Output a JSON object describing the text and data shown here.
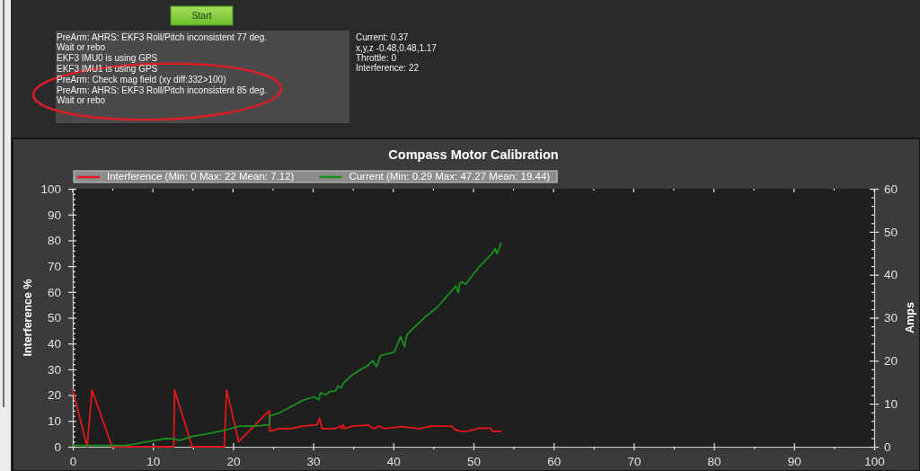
{
  "chart_data": {
    "type": "line",
    "title": "Compass Motor Calibration",
    "ylabel": "Interference %",
    "y2label": "Amps",
    "annotations": [
      "Start",
      "PreArm: AHRS: EKF3 Roll/Pitch inconsistent 77 deg.",
      "Wait or rebo",
      "EKF3 IMU0 is using GPS",
      "EKF3 IMU1 is using GPS",
      "PreArm: Check mag field (xy diff:332>100)",
      "PreArm: AHRS: EKF3 Roll/Pitch inconsistent 85 deg.",
      "Wait or rebo",
      "Current:  0.37",
      "x,y,z  -0.48,0.48,1.17",
      "Throttle:  0",
      "Interference: 22"
    ],
    "legend": "top left",
    "xlim": [
      0,
      100
    ],
    "xticks": [
      0,
      {
        "value": 5,
        "label": null
      },
      10,
      {
        "value": 15,
        "label": null
      },
      20,
      {
        "value": 25,
        "label": null
      },
      30,
      {
        "value": 35,
        "label": null
      },
      40,
      {
        "value": 45,
        "label": null
      },
      50,
      {
        "value": 55,
        "label": null
      },
      60,
      {
        "value": 65,
        "label": null
      },
      70,
      {
        "value": 75,
        "label": null
      },
      80,
      {
        "value": 85,
        "label": null
      },
      90,
      {
        "value": 95,
        "label": null
      },
      100
    ],
    "ylim": [
      0,
      100
    ],
    "yticks": [
      0,
      {
        "value": 2,
        "label": null
      },
      {
        "value": 4,
        "label": null
      },
      {
        "value": 6,
        "label": null
      },
      {
        "value": 8,
        "label": null
      },
      10,
      {
        "value": 12,
        "label": null
      },
      {
        "value": 14,
        "label": null
      },
      {
        "value": 16,
        "label": null
      },
      {
        "value": 18,
        "label": null
      },
      20,
      {
        "value": 22,
        "label": null
      },
      {
        "value": 24,
        "label": null
      },
      {
        "value": 26,
        "label": null
      },
      {
        "value": 28,
        "label": null
      },
      30,
      {
        "value": 32,
        "label": null
      },
      {
        "value": 34,
        "label": null
      },
      {
        "value": 36,
        "label": null
      },
      {
        "value": 38,
        "label": null
      },
      40,
      {
        "value": 42,
        "label": null
      },
      {
        "value": 44,
        "label": null
      },
      {
        "value": 46,
        "label": null
      },
      {
        "value": 48,
        "label": null
      },
      50,
      {
        "value": 52,
        "label": null
      },
      {
        "value": 54,
        "label": null
      },
      {
        "value": 56,
        "label": null
      },
      {
        "value": 58,
        "label": null
      },
      60,
      {
        "value": 62,
        "label": null
      },
      {
        "value": 64,
        "label": null
      },
      {
        "value": 66,
        "label": null
      },
      {
        "value": 68,
        "label": null
      },
      70,
      {
        "value": 72,
        "label": null
      },
      {
        "value": 74,
        "label": null
      },
      {
        "value": 76,
        "label": null
      },
      {
        "value": 78,
        "label": null
      },
      80,
      {
        "value": 82,
        "label": null
      },
      {
        "value": 84,
        "label": null
      },
      {
        "value": 86,
        "label": null
      },
      {
        "value": 88,
        "label": null
      },
      90,
      {
        "value": 92,
        "label": null
      },
      {
        "value": 94,
        "label": null
      },
      {
        "value": 96,
        "label": null
      },
      {
        "value": 98,
        "label": null
      },
      100
    ],
    "y2lim": [
      0,
      60
    ],
    "y2ticks": [
      0,
      {
        "value": 2,
        "label": null
      },
      {
        "value": 4,
        "label": null
      },
      {
        "value": 6,
        "label": null
      },
      {
        "value": 8,
        "label": null
      },
      10,
      {
        "value": 12,
        "label": null
      },
      {
        "value": 14,
        "label": null
      },
      {
        "value": 16,
        "label": null
      },
      {
        "value": 18,
        "label": null
      },
      20,
      {
        "value": 22,
        "label": null
      },
      {
        "value": 24,
        "label": null
      },
      {
        "value": 26,
        "label": null
      },
      {
        "value": 28,
        "label": null
      },
      30,
      {
        "value": 32,
        "label": null
      },
      {
        "value": 34,
        "label": null
      },
      {
        "value": 36,
        "label": null
      },
      {
        "value": 38,
        "label": null
      },
      40,
      {
        "value": 42,
        "label": null
      },
      {
        "value": 44,
        "label": null
      },
      {
        "value": 46,
        "label": null
      },
      {
        "value": 48,
        "label": null
      },
      50,
      {
        "value": 52,
        "label": null
      },
      {
        "value": 54,
        "label": null
      },
      {
        "value": 56,
        "label": null
      },
      {
        "value": 58,
        "label": null
      },
      60
    ],
    "series": [
      {
        "name": "Interference (Min: 0 Max: 22 Mean: 7.12)",
        "color": "#e3171e",
        "x": [
          0,
          1.8,
          2.4,
          4.9,
          12.6,
          12.7,
          14.9,
          18.9,
          19.2,
          20.7,
          24.5,
          24.6,
          25.7,
          27.2,
          28.7,
          30,
          30.5,
          30.8,
          31.1,
          32.7,
          33.4,
          33.6,
          33.7,
          33.9,
          34.9,
          36.9,
          37.6,
          38.2,
          38.9,
          41,
          43.2,
          44.7,
          47.3,
          47.7,
          48.4,
          49.2,
          50.7,
          52.2,
          52.4,
          53.4
        ],
        "values": [
          22,
          0,
          22,
          0,
          0,
          22,
          0,
          0,
          22,
          2,
          14,
          6,
          7,
          7,
          8,
          8.4,
          8.6,
          11,
          7,
          7,
          8,
          7,
          8.6,
          7,
          8,
          8.4,
          7,
          8,
          7,
          7.8,
          7,
          8,
          8,
          6.6,
          6,
          6,
          7.2,
          7.2,
          6,
          6
        ]
      },
      {
        "name": "Current (Min: 0.29 Max: 47.27 Mean: 19.44)",
        "color": "#17901c",
        "axis": "y2",
        "x": [
          0,
          6.6,
          10,
          11.5,
          12.6,
          13.4,
          14.9,
          17.1,
          19.3,
          20.8,
          22.7,
          24.5,
          24.6,
          25.7,
          26.8,
          28.7,
          30.1,
          30.7,
          30.9,
          31.6,
          32,
          32.8,
          33.1,
          33.5,
          33.8,
          35,
          36.9,
          37.4,
          37.9,
          38.4,
          40.1,
          40.9,
          41.4,
          41.7,
          43.9,
          45.4,
          47.3,
          47.8,
          48.1,
          48.3,
          48.6,
          49,
          50.7,
          52.2,
          52.5,
          52.7,
          52.9,
          53.2,
          53.4
        ],
        "values": [
          0.3,
          0.3,
          1.4,
          1.9,
          1.8,
          1.5,
          2.4,
          3.1,
          4,
          4.8,
          4.8,
          5.1,
          7.2,
          7.8,
          8.9,
          10.8,
          11.6,
          10.9,
          12.5,
          12.1,
          12.8,
          13,
          14.1,
          13.7,
          14.9,
          16.9,
          19,
          20,
          18.6,
          21.2,
          22,
          25.6,
          23.3,
          26.1,
          30.1,
          32.3,
          36.3,
          37.4,
          35.8,
          38.1,
          38.3,
          37.8,
          41.8,
          44.7,
          45.4,
          46.1,
          44.9,
          46,
          47.3
        ]
      }
    ]
  }
}
